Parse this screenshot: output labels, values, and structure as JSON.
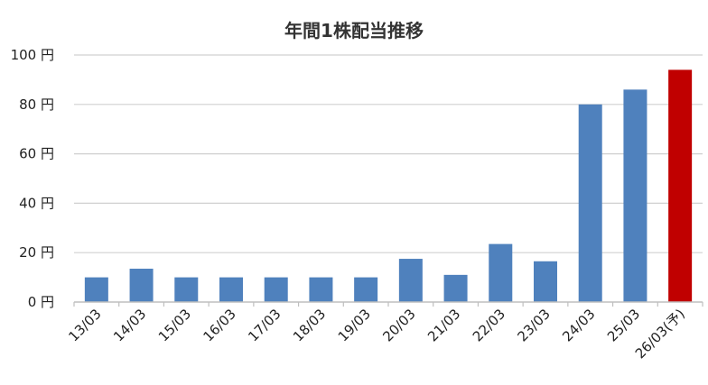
{
  "chart_data": {
    "type": "bar",
    "title": "年間1株配当推移",
    "categories": [
      "13/03",
      "14/03",
      "15/03",
      "16/03",
      "17/03",
      "18/03",
      "19/03",
      "20/03",
      "21/03",
      "22/03",
      "23/03",
      "24/03",
      "25/03",
      "26/03(予)"
    ],
    "values": [
      10,
      13.5,
      10,
      10,
      10,
      10,
      10,
      17.5,
      11,
      23.5,
      16.5,
      80,
      86,
      94
    ],
    "highlight": [
      false,
      false,
      false,
      false,
      false,
      false,
      false,
      false,
      false,
      false,
      false,
      false,
      false,
      true
    ],
    "ylim": [
      0,
      100
    ],
    "yticks": [
      0,
      20,
      40,
      60,
      80,
      100
    ],
    "ytick_labels": [
      "0 円",
      "20 円",
      "40 円",
      "60 円",
      "80 円",
      "100 円"
    ],
    "grid": true,
    "colors": {
      "bar": "#4f81bd",
      "highlight": "#c00000",
      "grid": "#d0d0d0",
      "axis": "#bfbfbf"
    }
  }
}
